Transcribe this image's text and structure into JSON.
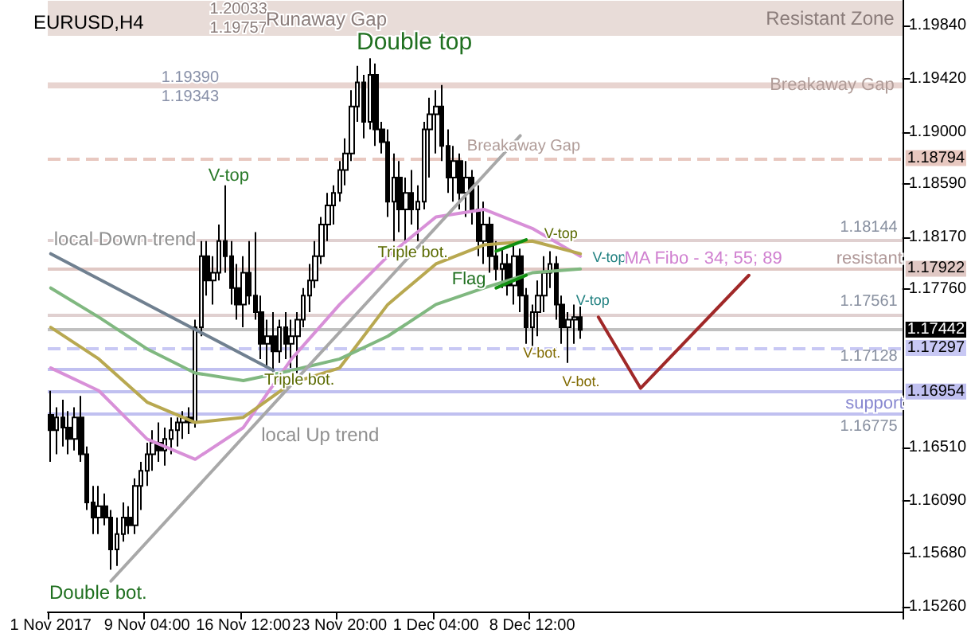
{
  "chart_data": {
    "type": "candlestick",
    "title": "EURUSD,H4",
    "categories": [
      "1 Nov 2017",
      null,
      null,
      null,
      null,
      null,
      null,
      null,
      null,
      null,
      null,
      null,
      null,
      null,
      null,
      null,
      "9 Nov 04:00",
      null,
      null,
      null,
      null,
      null,
      null,
      null,
      null,
      null,
      null,
      null,
      null,
      null,
      null,
      null,
      "16 Nov 12:00",
      null,
      null,
      null,
      null,
      null,
      null,
      null,
      null,
      null,
      null,
      null,
      null,
      null,
      null,
      null,
      "23 Nov 20:00",
      null,
      null,
      null,
      null,
      null,
      null,
      null,
      null,
      null,
      null,
      null,
      null,
      null,
      null,
      null,
      "1 Dec 04:00",
      null,
      null,
      null,
      null,
      null,
      null,
      null,
      null,
      null,
      null,
      null,
      null,
      null,
      null,
      null,
      "8 Dec 12:00",
      null,
      null,
      null,
      null,
      null,
      null,
      null,
      null,
      null,
      null,
      null,
      null,
      null,
      null,
      null,
      null,
      null,
      null,
      null,
      null,
      null,
      null,
      null,
      null,
      null,
      null,
      null,
      null,
      null,
      null,
      null,
      null,
      null,
      null,
      null,
      null,
      null,
      null,
      null,
      null,
      null,
      null,
      null,
      null,
      null,
      null,
      null,
      null,
      null,
      null,
      null,
      null,
      null,
      null,
      null,
      null,
      null,
      null,
      null,
      null,
      null
    ],
    "ohlc": [
      [
        1.1677,
        1.1696,
        1.164,
        1.1665
      ],
      [
        1.1665,
        1.1683,
        1.1646,
        1.1675
      ],
      [
        1.1675,
        1.1689,
        1.1652,
        1.1667
      ],
      [
        1.1667,
        1.168,
        1.1646,
        1.1658
      ],
      [
        1.1658,
        1.1683,
        1.1649,
        1.1675
      ],
      [
        1.1675,
        1.1692,
        1.164,
        1.1646
      ],
      [
        1.1646,
        1.1652,
        1.1602,
        1.1608
      ],
      [
        1.1608,
        1.1621,
        1.1583,
        1.1596
      ],
      [
        1.1596,
        1.1621,
        1.1583,
        1.1605
      ],
      [
        1.1605,
        1.1615,
        1.159,
        1.1596
      ],
      [
        1.1596,
        1.1602,
        1.1555,
        1.1571
      ],
      [
        1.1571,
        1.1596,
        1.1558,
        1.1583
      ],
      [
        1.1583,
        1.1608,
        1.1577,
        1.1596
      ],
      [
        1.1596,
        1.1605,
        1.1583,
        1.159
      ],
      [
        1.159,
        1.1627,
        1.1583,
        1.1621
      ],
      [
        1.1621,
        1.164,
        1.1602,
        1.1633
      ],
      [
        1.1633,
        1.1655,
        1.1621,
        1.1646
      ],
      [
        1.1646,
        1.1665,
        1.1633,
        1.1655
      ],
      [
        1.1655,
        1.1671,
        1.164,
        1.1649
      ],
      [
        1.1649,
        1.1667,
        1.1637,
        1.1658
      ],
      [
        1.1658,
        1.1675,
        1.1646,
        1.1665
      ],
      [
        1.1665,
        1.1675,
        1.1652,
        1.1671
      ],
      [
        1.1671,
        1.168,
        1.1658,
        1.1675
      ],
      [
        1.1675,
        1.1683,
        1.1662,
        1.1671
      ],
      [
        1.1671,
        1.1752,
        1.1667,
        1.1746
      ],
      [
        1.1746,
        1.1814,
        1.1739,
        1.1802
      ],
      [
        1.1802,
        1.1814,
        1.1771,
        1.1783
      ],
      [
        1.1783,
        1.1802,
        1.1764,
        1.1789
      ],
      [
        1.1789,
        1.1827,
        1.1783,
        1.1814
      ],
      [
        1.1814,
        1.1858,
        1.1789,
        1.1802
      ],
      [
        1.1802,
        1.1814,
        1.1764,
        1.1777
      ],
      [
        1.1777,
        1.1796,
        1.1752,
        1.1764
      ],
      [
        1.1764,
        1.1802,
        1.1746,
        1.1789
      ],
      [
        1.1789,
        1.1814,
        1.1764,
        1.1771
      ],
      [
        1.1771,
        1.1821,
        1.1752,
        1.1758
      ],
      [
        1.1758,
        1.1771,
        1.1721,
        1.1733
      ],
      [
        1.1733,
        1.1752,
        1.1714,
        1.1739
      ],
      [
        1.1739,
        1.1758,
        1.171,
        1.1727
      ],
      [
        1.1727,
        1.1752,
        1.1718,
        1.1746
      ],
      [
        1.1746,
        1.1758,
        1.1721,
        1.1733
      ],
      [
        1.1733,
        1.1752,
        1.1714,
        1.1739
      ],
      [
        1.1739,
        1.1758,
        1.171,
        1.1752
      ],
      [
        1.1752,
        1.1777,
        1.1746,
        1.1771
      ],
      [
        1.1771,
        1.1796,
        1.1758,
        1.1783
      ],
      [
        1.1783,
        1.1814,
        1.1777,
        1.1802
      ],
      [
        1.1802,
        1.1833,
        1.1796,
        1.1827
      ],
      [
        1.1827,
        1.1852,
        1.1814,
        1.1842
      ],
      [
        1.1842,
        1.1858,
        1.1827,
        1.1852
      ],
      [
        1.1852,
        1.1877,
        1.1845,
        1.187
      ],
      [
        1.187,
        1.1895,
        1.1858,
        1.1883
      ],
      [
        1.1883,
        1.1933,
        1.1877,
        1.192
      ],
      [
        1.192,
        1.1952,
        1.1908,
        1.1939
      ],
      [
        1.1939,
        1.1945,
        1.1895,
        1.1908
      ],
      [
        1.1908,
        1.1958,
        1.1902,
        1.1945
      ],
      [
        1.1945,
        1.1954,
        1.1889,
        1.1902
      ],
      [
        1.1902,
        1.1908,
        1.1883,
        1.1892
      ],
      [
        1.1892,
        1.1902,
        1.1833,
        1.1845
      ],
      [
        1.1845,
        1.1883,
        1.1814,
        1.1864
      ],
      [
        1.1864,
        1.1877,
        1.1821,
        1.1839
      ],
      [
        1.1839,
        1.1864,
        1.1814,
        1.1852
      ],
      [
        1.1852,
        1.187,
        1.1827,
        1.1839
      ],
      [
        1.1839,
        1.1858,
        1.1814,
        1.1845
      ],
      [
        1.1845,
        1.1908,
        1.1839,
        1.1902
      ],
      [
        1.1902,
        1.1927,
        1.1864,
        1.1914
      ],
      [
        1.1914,
        1.1933,
        1.1883,
        1.192
      ],
      [
        1.192,
        1.1937,
        1.1877,
        1.1889
      ],
      [
        1.1889,
        1.1902,
        1.1852,
        1.1864
      ],
      [
        1.1864,
        1.1889,
        1.1845,
        1.1877
      ],
      [
        1.1877,
        1.1883,
        1.1839,
        1.1852
      ],
      [
        1.1852,
        1.1877,
        1.1833,
        1.1864
      ],
      [
        1.1864,
        1.187,
        1.1827,
        1.1839
      ],
      [
        1.1839,
        1.1858,
        1.1802,
        1.1814
      ],
      [
        1.1814,
        1.1845,
        1.1796,
        1.1827
      ],
      [
        1.1827,
        1.1833,
        1.1789,
        1.1802
      ],
      [
        1.1802,
        1.1814,
        1.1783,
        1.1792
      ],
      [
        1.1792,
        1.1808,
        1.1777,
        1.1796
      ],
      [
        1.1796,
        1.1804,
        1.1771,
        1.1779
      ],
      [
        1.1779,
        1.1814,
        1.1764,
        1.1802
      ],
      [
        1.1802,
        1.1808,
        1.1758,
        1.1771
      ],
      [
        1.1771,
        1.1777,
        1.1733,
        1.1746
      ],
      [
        1.1746,
        1.1764,
        1.1729,
        1.1758
      ],
      [
        1.1758,
        1.1783,
        1.1739,
        1.1771
      ],
      [
        1.1771,
        1.1802,
        1.1758,
        1.1789
      ],
      [
        1.1789,
        1.1806,
        1.1777,
        1.1796
      ],
      [
        1.1796,
        1.1802,
        1.1752,
        1.1764
      ],
      [
        1.1764,
        1.1771,
        1.1733,
        1.1746
      ],
      [
        1.1746,
        1.1758,
        1.1718,
        1.1752
      ],
      [
        1.1752,
        1.1764,
        1.1733,
        1.1754
      ],
      [
        1.1754,
        1.1767,
        1.1737,
        1.1744
      ],
      null,
      null,
      null,
      null,
      null,
      null,
      null,
      null,
      null,
      null,
      null,
      null,
      null,
      null,
      null,
      null,
      null,
      null,
      null,
      null,
      null,
      null,
      null,
      null,
      null,
      null,
      null,
      null,
      null,
      null,
      null,
      null,
      null,
      null,
      null,
      null,
      null,
      null,
      null,
      null,
      null,
      null,
      null,
      null,
      null,
      null,
      null,
      null,
      null,
      null,
      null,
      null,
      null
    ],
    "series": [
      {
        "type": "line",
        "color": "#d890d8",
        "values": [
          1.1714,
          null,
          null,
          null,
          null,
          null,
          null,
          null,
          1.1696,
          null,
          null,
          null,
          null,
          null,
          null,
          null,
          1.1658,
          null,
          null,
          null,
          null,
          null,
          null,
          null,
          1.1642,
          null,
          null,
          null,
          null,
          null,
          null,
          null,
          1.1667,
          null,
          null,
          null,
          null,
          null,
          null,
          null,
          1.1721,
          null,
          null,
          null,
          null,
          null,
          null,
          null,
          1.1764,
          null,
          null,
          null,
          null,
          null,
          null,
          null,
          1.1802,
          null,
          null,
          null,
          null,
          null,
          null,
          null,
          1.1833,
          null,
          null,
          null,
          null,
          null,
          null,
          null,
          1.1839,
          null,
          null,
          null,
          null,
          null,
          null,
          null,
          1.1824,
          null,
          null,
          null,
          null,
          null,
          null,
          null,
          1.1802,
          null,
          null,
          null,
          null,
          null,
          null,
          null,
          null,
          null,
          null,
          null,
          null,
          null,
          null,
          null,
          null,
          null,
          null,
          null,
          null,
          null,
          null,
          null,
          null,
          null,
          null,
          null,
          null,
          null,
          null,
          null,
          null,
          null,
          null,
          null,
          null,
          null,
          null,
          null,
          null,
          null,
          null,
          null,
          null,
          null,
          null,
          null,
          null,
          null,
          null,
          null,
          null,
          null
        ]
      },
      {
        "type": "line",
        "color": "#b8a850",
        "values": [
          1.1746,
          null,
          null,
          null,
          null,
          null,
          null,
          null,
          1.1721,
          null,
          null,
          null,
          null,
          null,
          null,
          null,
          1.1687,
          null,
          null,
          null,
          null,
          null,
          null,
          null,
          1.1671,
          null,
          null,
          null,
          null,
          null,
          null,
          null,
          1.1675,
          null,
          null,
          null,
          null,
          null,
          null,
          null,
          1.1702,
          null,
          null,
          null,
          null,
          null,
          null,
          null,
          1.1714,
          null,
          null,
          null,
          null,
          null,
          null,
          null,
          1.1764,
          null,
          null,
          null,
          null,
          null,
          null,
          null,
          1.1796,
          null,
          null,
          null,
          null,
          null,
          null,
          null,
          1.1811,
          null,
          null,
          null,
          null,
          null,
          null,
          null,
          1.1814,
          null,
          null,
          null,
          null,
          null,
          null,
          null,
          1.1804,
          null,
          null,
          null,
          null,
          null,
          null,
          null,
          null,
          null,
          null,
          null,
          null,
          null,
          null,
          null,
          null,
          null,
          null,
          null,
          null,
          null,
          null,
          null,
          null,
          null,
          null,
          null,
          null,
          null,
          null,
          null,
          null,
          null,
          null,
          null,
          null,
          null,
          null,
          null,
          null,
          null,
          null,
          null,
          null,
          null,
          null,
          null,
          null,
          null,
          null,
          null,
          null,
          null
        ]
      },
      {
        "type": "line",
        "color": "#80b880",
        "values": [
          1.1777,
          null,
          null,
          null,
          null,
          null,
          null,
          null,
          1.1754,
          null,
          null,
          null,
          null,
          null,
          null,
          null,
          1.1729,
          null,
          null,
          null,
          null,
          null,
          null,
          null,
          1.171,
          null,
          null,
          null,
          null,
          null,
          null,
          null,
          1.1704,
          null,
          null,
          null,
          null,
          null,
          null,
          null,
          1.1712,
          null,
          null,
          null,
          null,
          null,
          null,
          null,
          1.1721,
          null,
          null,
          null,
          null,
          null,
          null,
          null,
          1.1739,
          null,
          null,
          null,
          null,
          null,
          null,
          null,
          1.1764,
          null,
          null,
          null,
          null,
          null,
          null,
          null,
          1.1777,
          null,
          null,
          null,
          null,
          null,
          null,
          null,
          1.1789,
          null,
          null,
          null,
          null,
          null,
          null,
          null,
          1.1792,
          null,
          null,
          null,
          null,
          null,
          null,
          null,
          null,
          null,
          null,
          null,
          null,
          null,
          null,
          null,
          null,
          null,
          null,
          null,
          null,
          null,
          null,
          null,
          null,
          null,
          null,
          null,
          null,
          null,
          null,
          null,
          null,
          null,
          null,
          null,
          null,
          null,
          null,
          null,
          null,
          null,
          null,
          null,
          null,
          null,
          null,
          null,
          null,
          null,
          null,
          null,
          null,
          null
        ]
      },
      {
        "type": "line",
        "color": "#708090",
        "values": [
          1.1804,
          null,
          null,
          null,
          null,
          null,
          null,
          null,
          null,
          null,
          null,
          null,
          null,
          null,
          null,
          null,
          null,
          null,
          null,
          null,
          null,
          null,
          null,
          null,
          null,
          null,
          null,
          null,
          null,
          null,
          null,
          null,
          null,
          null,
          null,
          null,
          null,
          1.1712,
          null,
          null,
          null,
          null,
          null,
          null,
          null,
          null,
          null,
          null,
          null,
          null,
          null,
          null,
          null,
          null,
          null,
          null,
          null,
          null,
          null,
          null,
          null,
          null,
          null,
          null,
          null,
          null,
          null,
          null,
          null,
          null,
          null,
          null,
          null,
          null,
          null,
          null,
          null,
          null,
          null,
          null,
          null,
          null,
          null,
          null,
          null,
          null,
          null,
          null,
          null,
          null,
          null,
          null,
          null,
          null,
          null,
          null,
          null,
          null,
          null,
          null,
          null,
          null,
          null,
          null,
          null,
          null,
          null,
          null,
          null,
          null,
          null,
          null,
          null,
          null,
          null,
          null,
          null,
          null,
          null,
          null,
          null,
          null,
          null,
          null,
          null,
          null,
          null,
          null,
          null,
          null,
          null,
          null,
          null,
          null,
          null,
          null,
          null,
          null,
          null,
          null,
          null,
          null
        ]
      },
      {
        "type": "line",
        "color": "#a8a8a8",
        "values": [
          null,
          null,
          null,
          null,
          null,
          null,
          null,
          null,
          null,
          null,
          1.1546,
          null,
          null,
          null,
          null,
          null,
          null,
          null,
          null,
          null,
          null,
          null,
          null,
          null,
          null,
          null,
          null,
          null,
          null,
          null,
          null,
          null,
          null,
          null,
          null,
          null,
          null,
          null,
          null,
          null,
          null,
          null,
          null,
          null,
          null,
          null,
          null,
          null,
          null,
          null,
          null,
          null,
          null,
          null,
          null,
          null,
          null,
          null,
          null,
          null,
          null,
          null,
          null,
          null,
          null,
          null,
          null,
          null,
          null,
          null,
          null,
          null,
          null,
          null,
          null,
          null,
          null,
          null,
          1.1897,
          null,
          null,
          null,
          null,
          null,
          null,
          null,
          null,
          null,
          null,
          null,
          null,
          null,
          null,
          null,
          null,
          null,
          null,
          null,
          null,
          null,
          null,
          null,
          null,
          null,
          null,
          null,
          null,
          null,
          null,
          null,
          null,
          null,
          null,
          null,
          null,
          null,
          null,
          null,
          null,
          null,
          null,
          null,
          null,
          null,
          null,
          null,
          null,
          null,
          null,
          null,
          null,
          null,
          null,
          null,
          null,
          null,
          null,
          null,
          null,
          null,
          null,
          null
        ]
      },
      {
        "type": "line",
        "color": "#109010",
        "values": [
          null,
          null,
          null,
          null,
          null,
          null,
          null,
          null,
          null,
          null,
          null,
          null,
          null,
          null,
          null,
          null,
          null,
          null,
          null,
          null,
          null,
          null,
          null,
          null,
          null,
          null,
          null,
          null,
          null,
          null,
          null,
          null,
          null,
          null,
          null,
          null,
          null,
          null,
          null,
          null,
          null,
          null,
          null,
          null,
          null,
          null,
          null,
          null,
          null,
          null,
          null,
          null,
          null,
          null,
          null,
          null,
          null,
          null,
          null,
          null,
          null,
          null,
          null,
          null,
          null,
          null,
          null,
          null,
          null,
          null,
          null,
          null,
          null,
          null,
          1.1806,
          null,
          null,
          null,
          null,
          1.1815,
          null,
          null,
          null,
          null,
          null,
          null,
          null,
          null,
          null,
          null,
          null,
          null,
          null,
          null,
          null,
          null,
          null,
          null,
          null,
          null,
          null,
          null,
          null,
          null,
          null,
          null,
          null,
          null,
          null,
          null,
          null,
          null,
          null,
          null,
          null,
          null,
          null,
          null,
          null,
          null,
          null,
          null,
          null,
          null,
          null,
          null,
          null,
          null,
          null,
          null,
          null,
          null,
          null,
          null,
          null,
          null,
          null,
          null,
          null,
          null,
          null,
          null
        ]
      },
      {
        "type": "line",
        "color": "#109010",
        "values": [
          null,
          null,
          null,
          null,
          null,
          null,
          null,
          null,
          null,
          null,
          null,
          null,
          null,
          null,
          null,
          null,
          null,
          null,
          null,
          null,
          null,
          null,
          null,
          null,
          null,
          null,
          null,
          null,
          null,
          null,
          null,
          null,
          null,
          null,
          null,
          null,
          null,
          null,
          null,
          null,
          null,
          null,
          null,
          null,
          null,
          null,
          null,
          null,
          null,
          null,
          null,
          null,
          null,
          null,
          null,
          null,
          null,
          null,
          null,
          null,
          null,
          null,
          null,
          null,
          null,
          null,
          null,
          null,
          null,
          null,
          null,
          null,
          null,
          null,
          1.1777,
          null,
          null,
          null,
          null,
          1.1787,
          null,
          null,
          null,
          null,
          null,
          null,
          null,
          null,
          null,
          null,
          null,
          null,
          null,
          null,
          null,
          null,
          null,
          null,
          null,
          null,
          null,
          null,
          null,
          null,
          null,
          null,
          null,
          null,
          null,
          null,
          null,
          null,
          null,
          null,
          null,
          null,
          null,
          null,
          null,
          null,
          null,
          null,
          null,
          null,
          null,
          null,
          null,
          null,
          null,
          null,
          null,
          null,
          null,
          null,
          null,
          null,
          null,
          null,
          null,
          null,
          null,
          null
        ]
      },
      {
        "type": "line",
        "color": "#a02828",
        "values": [
          null,
          null,
          null,
          null,
          null,
          null,
          null,
          null,
          null,
          null,
          null,
          null,
          null,
          null,
          null,
          null,
          null,
          null,
          null,
          null,
          null,
          null,
          null,
          null,
          null,
          null,
          null,
          null,
          null,
          null,
          null,
          null,
          null,
          null,
          null,
          null,
          null,
          null,
          null,
          null,
          null,
          null,
          null,
          null,
          null,
          null,
          null,
          null,
          null,
          null,
          null,
          null,
          null,
          null,
          null,
          null,
          null,
          null,
          null,
          null,
          null,
          null,
          null,
          null,
          null,
          null,
          null,
          null,
          null,
          null,
          null,
          null,
          null,
          null,
          null,
          null,
          null,
          null,
          null,
          null,
          null,
          null,
          null,
          null,
          null,
          null,
          null,
          null,
          null,
          null,
          null,
          1.1754,
          null,
          null,
          null,
          null,
          null,
          null,
          1.1698,
          null,
          null,
          null,
          null,
          null,
          null,
          null,
          null,
          null,
          null,
          null,
          null,
          null,
          null,
          null,
          null,
          null,
          1.1787,
          null,
          null,
          null,
          null,
          null,
          null,
          null,
          null,
          null,
          null,
          null,
          null,
          null,
          null,
          null,
          null,
          null,
          null,
          null,
          null,
          null,
          null,
          null,
          null,
          null
        ]
      }
    ],
    "marker": "none",
    "ylim": [
      1.1522,
      1.2004
    ],
    "yticks": [
      {
        "value": 1.1984,
        "label": "1.19840"
      },
      {
        "value": 1.1942,
        "label": "1.19420"
      },
      {
        "value": 1.19,
        "label": "1.19000"
      },
      {
        "value": 1.1859,
        "label": "1.18590"
      },
      {
        "value": 1.1817,
        "label": "1.18170"
      },
      {
        "value": 1.1776,
        "label": "1.17760"
      },
      {
        "value": 1.1651,
        "label": "1.16510"
      },
      {
        "value": 1.1609,
        "label": "1.16090"
      },
      {
        "value": 1.1568,
        "label": "1.15680"
      },
      {
        "value": 1.1526,
        "label": "1.15260"
      }
    ],
    "bands": [
      {
        "axis": "y",
        "from": 1.19757,
        "to": 1.20033,
        "label": "Resistant Zone",
        "color": "#e8dcd8"
      },
      {
        "axis": "y",
        "from": 1.19343,
        "to": 1.1939,
        "label": "Breakaway Gap",
        "color": "#e8d4d0"
      }
    ],
    "ref_lines": [
      {
        "axis": "y",
        "value": 1.18794,
        "label": "1.18794",
        "color": "#e8c8c0",
        "line_style": "dashed"
      },
      {
        "axis": "y",
        "value": 1.18144,
        "label": "1.18144",
        "color": "#e0d0d0",
        "line_style": "solid"
      },
      {
        "axis": "y",
        "value": 1.17922,
        "label": "1.17922",
        "color": "#e0c8c4",
        "line_style": "solid"
      },
      {
        "axis": "y",
        "value": 1.17561,
        "label": "1.17561",
        "color": "#e0d0d0",
        "line_style": "solid"
      },
      {
        "axis": "y",
        "value": 1.17442,
        "label": "1.17442",
        "color": "#c0c0c0",
        "line_style": "solid"
      },
      {
        "axis": "y",
        "value": 1.17297,
        "label": "1.17297",
        "color": "#c8c8f4",
        "line_style": "dashed"
      },
      {
        "axis": "y",
        "value": 1.17128,
        "label": "1.17128",
        "color": "#c0c0f0",
        "line_style": "solid"
      },
      {
        "axis": "y",
        "value": 1.16954,
        "label": "1.16954",
        "color": "#c0c0f0",
        "line_style": "solid"
      },
      {
        "axis": "y",
        "value": 1.16775,
        "label": "1.16775",
        "color": "#c0c0f0",
        "line_style": "solid"
      }
    ],
    "annotations": [
      "1.20033",
      "1.19757",
      "Runaway Gap",
      "1.19390",
      "1.19343",
      "Double top",
      "Breakaway Gap",
      "V-top",
      "local Down trend",
      "Triple bot.",
      "V-top",
      "V-top",
      "Flag",
      "MA Fibo - 34; 55; 89",
      "resistant",
      "V-top",
      "V-bot.",
      "Triple bot.",
      "V-bot.",
      "support",
      "local Up trend",
      "Double bot."
    ]
  }
}
